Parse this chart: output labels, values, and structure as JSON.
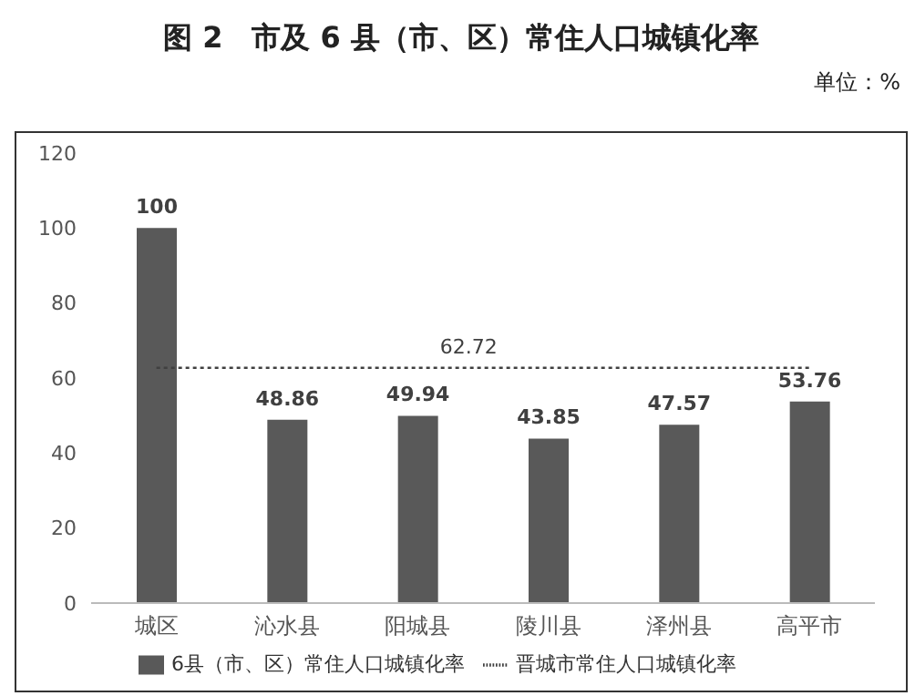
{
  "chart_data": {
    "type": "bar",
    "title": "图 2　市及 6 县（市、区）常住人口城镇化率",
    "annotations": [
      "单位：%"
    ],
    "categories": [
      "城区",
      "沁水县",
      "阳城县",
      "陵川县",
      "泽州县",
      "高平市"
    ],
    "series": [
      {
        "name": "6县（市、区）常住人口城镇化率",
        "color": "#595959",
        "values": [
          100,
          48.86,
          49.94,
          43.85,
          47.57,
          53.76
        ],
        "value_labels": [
          "100",
          "48.86",
          "49.94",
          "43.85",
          "47.57",
          "53.76"
        ]
      },
      {
        "type": "line",
        "name": "晋城市常住人口城镇化率",
        "color": "#404040",
        "values": [
          62.72,
          62.72,
          62.72,
          62.72,
          62.72,
          62.72
        ],
        "value_labels": [
          null,
          null,
          "62.72",
          null,
          null,
          null
        ],
        "line_style": "dotted",
        "marker": "none"
      }
    ],
    "ylim": [
      0,
      120
    ],
    "yticks": [
      0,
      20,
      40,
      60,
      80,
      100,
      120
    ],
    "legend": "bottom"
  }
}
